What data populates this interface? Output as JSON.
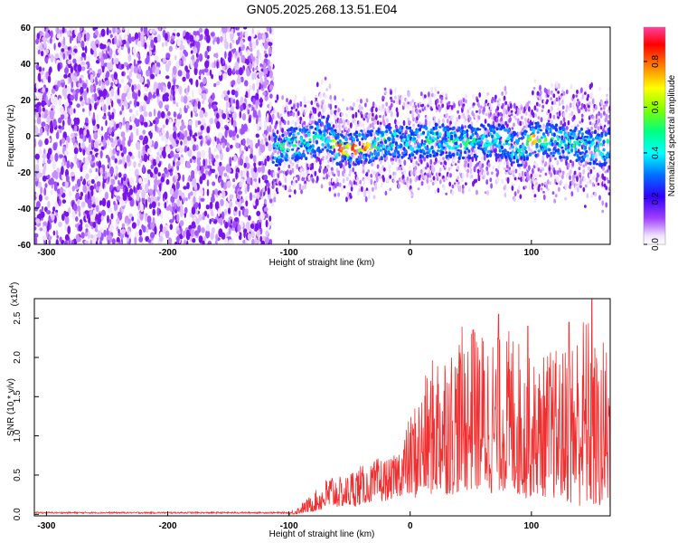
{
  "figure_title": "GN05.2025.268.13.51.E04",
  "chart_data": [
    {
      "type": "heatmap",
      "xlabel": "Height of straight line (km)",
      "ylabel": "Frequency (Hz)",
      "xlim": [
        -310,
        165
      ],
      "ylim": [
        -60,
        60
      ],
      "xticks": [
        -300,
        -200,
        -100,
        0,
        100
      ],
      "yticks": [
        60,
        40,
        20,
        0,
        -20,
        -40,
        -60
      ],
      "colorbar": {
        "label": "Normalized spectral amplitude",
        "range": [
          0.0,
          0.95
        ],
        "ticks": [
          "0.0",
          "0.2",
          "0.4",
          "0.6",
          "0.8"
        ]
      },
      "colormap": [
        "#ffffff",
        "#e8ccff",
        "#c080ff",
        "#8020f0",
        "#3010ff",
        "#0080ff",
        "#00ffff",
        "#00ff60",
        "#ffff00",
        "#ff6000",
        "#ff0000",
        "#ff00c0"
      ],
      "regions": [
        {
          "x_range": [
            -310,
            -113
          ],
          "freq_range": [
            -60,
            60
          ],
          "amplitude": "low (0.0-0.1), scattered noise"
        },
        {
          "x_range": [
            -113,
            165
          ],
          "center_freq": -5,
          "bandwidth": 10,
          "amplitude": "0.1-0.95, continuous band"
        }
      ],
      "band_centerline": {
        "x": [
          -120,
          -100,
          -80,
          -70,
          -60,
          -50,
          -40,
          -30,
          -20,
          -10,
          0,
          20,
          40,
          60,
          80,
          90,
          100,
          110,
          120,
          140,
          160,
          165
        ],
        "freq": [
          -10,
          -5,
          -3,
          2,
          -7,
          -8,
          -6,
          -6,
          -3,
          -3,
          -4,
          -2,
          -4,
          -3,
          -3,
          -10,
          -2,
          -2,
          -3,
          -5,
          -8,
          -3
        ]
      },
      "band_peaks": [
        {
          "x": -58,
          "freq": -7,
          "amplitude": 0.9
        },
        {
          "x": -47,
          "freq": -8,
          "amplitude": 0.9
        },
        {
          "x": -37,
          "freq": -6,
          "amplitude": 0.85
        },
        {
          "x": 102,
          "freq": -2,
          "amplitude": 0.8
        }
      ]
    },
    {
      "type": "line",
      "xlabel": "Height of straight line (km)",
      "ylabel": "SNR (10 * v/v)",
      "y_multiplier": "(x10",
      "y_multiplier_exp": "4",
      "y_multiplier_close": ")",
      "xlim": [
        -310,
        165
      ],
      "ylim": [
        -0.02,
        2.75
      ],
      "xticks": [
        -300,
        -200,
        -100,
        0,
        100
      ],
      "yticks": [
        "0.0",
        "0.5",
        "1.0",
        "1.5",
        "2.0",
        "2.5"
      ],
      "series": [
        {
          "color": "#f03030",
          "envelope": {
            "x": [
              -310,
              -100,
              -95,
              -85,
              -75,
              -65,
              -55,
              -45,
              -35,
              -25,
              -15,
              -5,
              5,
              15,
              25,
              35,
              45,
              55,
              65,
              75,
              85,
              95,
              105,
              115,
              125,
              135,
              145,
              155,
              165
            ],
            "upper": [
              0.03,
              0.03,
              0.07,
              0.2,
              0.35,
              0.55,
              0.45,
              0.65,
              0.6,
              0.75,
              0.7,
              1.05,
              1.5,
              1.85,
              2.3,
              2.2,
              2.45,
              2.35,
              2.45,
              2.25,
              2.45,
              2.05,
              1.95,
              2.15,
              2.1,
              2.4,
              2.65,
              2.1,
              2.45
            ],
            "lower": [
              0.0,
              0.0,
              0.0,
              0.02,
              0.05,
              0.08,
              0.1,
              0.1,
              0.15,
              0.15,
              0.2,
              0.25,
              0.2,
              0.25,
              0.25,
              0.25,
              0.3,
              0.3,
              0.25,
              0.3,
              0.25,
              0.2,
              0.25,
              0.2,
              0.2,
              0.1,
              0.1,
              0.05,
              0.05
            ],
            "peaks": [
              {
                "x": 52,
                "y": 2.35
              },
              {
                "x": 73,
                "y": 2.55
              },
              {
                "x": 97,
                "y": 2.4
              },
              {
                "x": 131,
                "y": 2.45
              },
              {
                "x": 150,
                "y": 2.75
              }
            ]
          }
        }
      ]
    }
  ]
}
